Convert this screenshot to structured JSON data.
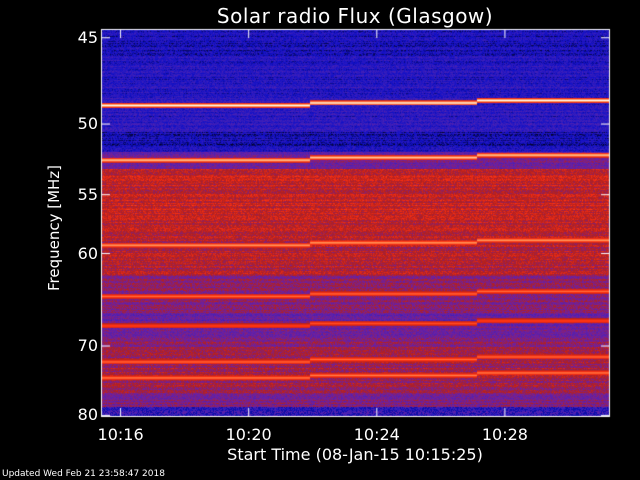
{
  "chart_data": {
    "type": "heatmap",
    "title": "Solar radio Flux (Glasgow)",
    "xlabel": "Start Time (08-Jan-15 10:15:25)",
    "ylabel": "Frequency [MHz]",
    "footer": "Updated Wed Feb 21 23:58:47 2018",
    "x_ticks": [
      "10:16",
      "10:20",
      "10:24",
      "10:28"
    ],
    "x_tick_values_min": [
      16,
      20,
      24,
      28
    ],
    "x_range_min": [
      15.42,
      31.25
    ],
    "y_ticks": [
      "45",
      "50",
      "55",
      "60",
      "70",
      "80"
    ],
    "y_tick_values": [
      45,
      50,
      55,
      60,
      70,
      80
    ],
    "y_range": [
      44.6,
      80.1
    ],
    "y_scale": "reciprocal (frequency increases downward)",
    "colormap": [
      "#000000",
      "#1010c8",
      "#4020b8",
      "#7020a0",
      "#b02020",
      "#ff3010",
      "#ffa060",
      "#ffffff"
    ],
    "segments_start_min": [
      15.42,
      21.9,
      27.1
    ],
    "bright_bands_mhz": [
      {
        "freq": 48.8,
        "intensity": 1.0
      },
      {
        "freq": 52.4,
        "intensity": 0.85
      },
      {
        "freq": 59.2,
        "intensity": 0.7
      },
      {
        "freq": 64.2,
        "intensity": 0.55
      },
      {
        "freq": 67.5,
        "intensity": 0.45
      },
      {
        "freq": 72.0,
        "intensity": 0.55
      },
      {
        "freq": 74.2,
        "intensity": 0.6
      }
    ]
  }
}
